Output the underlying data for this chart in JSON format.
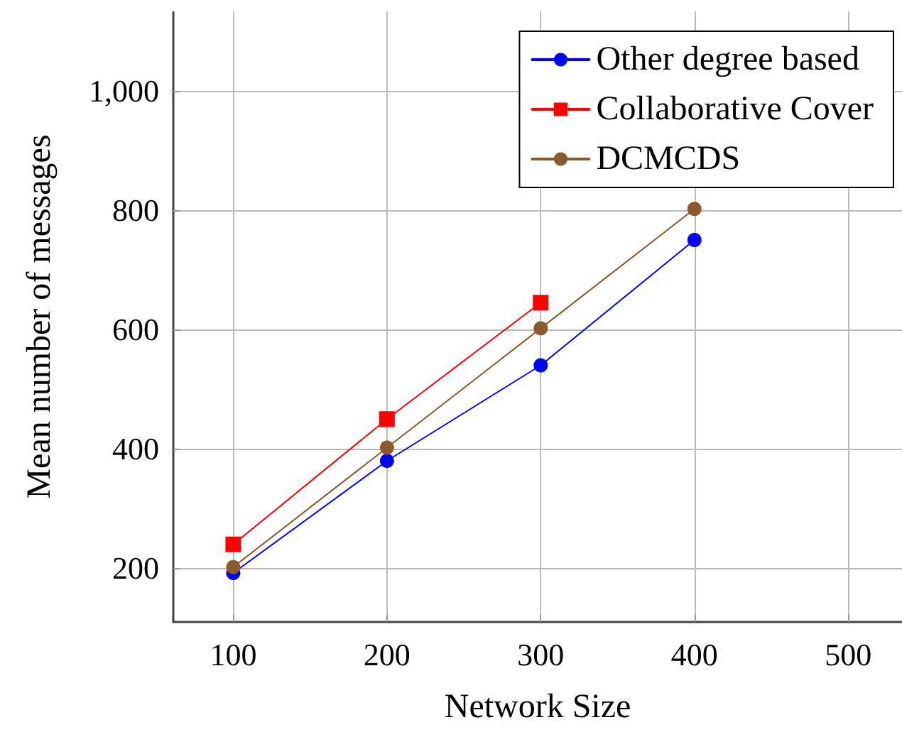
{
  "chart_data": {
    "type": "line",
    "xlabel": "Network Size",
    "ylabel": "Mean number of messages",
    "x": [
      100,
      200,
      300,
      400
    ],
    "series": [
      {
        "name": "Other degree based",
        "color": "#0000ff",
        "marker": "circle",
        "values": [
          192,
          380,
          540,
          750
        ]
      },
      {
        "name": "Collaborative Cover",
        "color": "#ff0000",
        "marker": "square",
        "values": [
          240,
          450,
          645,
          null
        ]
      },
      {
        "name": "DCMCDS",
        "color": "#8b5a2b",
        "marker": "circle",
        "values": [
          202,
          402,
          602,
          802
        ]
      }
    ],
    "xlim": [
      61,
      535
    ],
    "xticks": [
      100,
      200,
      300,
      400,
      500
    ],
    "ylim": [
      110,
      1133
    ],
    "yticks": [
      200,
      400,
      600,
      800,
      {
        "value": 1000,
        "label": "1,000"
      }
    ],
    "grid": true,
    "legend": "top right",
    "line_style": "solid"
  }
}
